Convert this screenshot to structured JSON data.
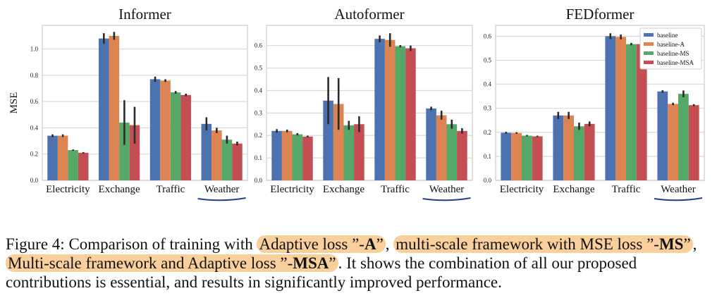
{
  "colors": {
    "baseline": "#4c72b0",
    "baseline_A": "#dd8452",
    "baseline_MS": "#55a868",
    "baseline_MSA": "#c44e52",
    "grid": "#d9d9d9",
    "underline": "#1f3f8f",
    "highlight": "#f9cf9c"
  },
  "chart_data": [
    {
      "type": "bar",
      "title": "Informer",
      "ylabel": "MSE",
      "ylim": [
        0,
        1.18
      ],
      "yticks": [
        0.0,
        0.2,
        0.4,
        0.6,
        0.8,
        1.0
      ],
      "ytick_labels": [
        "0.0",
        "0.2",
        "0.4",
        "0.6",
        "0.8",
        "1.0"
      ],
      "grid": true,
      "categories": [
        "Electricity",
        "Exchange",
        "Traffic",
        "Weather"
      ],
      "underlined_category": "Weather",
      "series": [
        {
          "name": "baseline",
          "values": [
            0.34,
            1.08,
            0.77,
            0.43
          ],
          "err": [
            0.01,
            0.04,
            0.02,
            0.05
          ]
        },
        {
          "name": "baseline-A",
          "values": [
            0.34,
            1.1,
            0.76,
            0.38
          ],
          "err": [
            0.01,
            0.03,
            0.01,
            0.02
          ]
        },
        {
          "name": "baseline-MS",
          "values": [
            0.23,
            0.44,
            0.67,
            0.31
          ],
          "err": [
            0.005,
            0.17,
            0.01,
            0.03
          ]
        },
        {
          "name": "baseline-MSA",
          "values": [
            0.21,
            0.42,
            0.65,
            0.28
          ],
          "err": [
            0.005,
            0.14,
            0.01,
            0.015
          ]
        }
      ]
    },
    {
      "type": "bar",
      "title": "Autoformer",
      "ylabel": "",
      "ylim": [
        0,
        0.69
      ],
      "yticks": [
        0.0,
        0.1,
        0.2,
        0.3,
        0.4,
        0.5,
        0.6
      ],
      "ytick_labels": [
        "0.0",
        "0.1",
        "0.2",
        "0.3",
        "0.4",
        "0.5",
        "0.6"
      ],
      "grid": true,
      "categories": [
        "Electricity",
        "Exchange",
        "Traffic",
        "Weather"
      ],
      "underlined_category": "Weather",
      "series": [
        {
          "name": "baseline",
          "values": [
            0.22,
            0.355,
            0.63,
            0.32
          ],
          "err": [
            0.008,
            0.105,
            0.015,
            0.008
          ]
        },
        {
          "name": "baseline-A",
          "values": [
            0.22,
            0.34,
            0.625,
            0.29
          ],
          "err": [
            0.006,
            0.115,
            0.03,
            0.02
          ]
        },
        {
          "name": "baseline-MS",
          "values": [
            0.205,
            0.245,
            0.597,
            0.25
          ],
          "err": [
            0.005,
            0.02,
            0.005,
            0.02
          ]
        },
        {
          "name": "baseline-MSA",
          "values": [
            0.195,
            0.25,
            0.588,
            0.22
          ],
          "err": [
            0.004,
            0.035,
            0.012,
            0.012
          ]
        }
      ]
    },
    {
      "type": "bar",
      "title": "FEDformer",
      "ylabel": "",
      "ylim": [
        0,
        0.645
      ],
      "yticks": [
        0.0,
        0.1,
        0.2,
        0.3,
        0.4,
        0.5,
        0.6
      ],
      "ytick_labels": [
        "0.0",
        "0.1",
        "0.2",
        "0.3",
        "0.4",
        "0.5",
        "0.6"
      ],
      "grid": true,
      "legend_position": "top-right",
      "categories": [
        "Electricity",
        "Exchange",
        "Traffic",
        "Weather"
      ],
      "underlined_category": "Weather",
      "series": [
        {
          "name": "baseline",
          "values": [
            0.198,
            0.27,
            0.6,
            0.37
          ],
          "err": [
            0.004,
            0.015,
            0.012,
            0.005
          ]
        },
        {
          "name": "baseline-A",
          "values": [
            0.197,
            0.27,
            0.597,
            0.318
          ],
          "err": [
            0.003,
            0.015,
            0.01,
            0.005
          ]
        },
        {
          "name": "baseline-MS",
          "values": [
            0.186,
            0.225,
            0.567,
            0.36
          ],
          "err": [
            0.003,
            0.015,
            0.005,
            0.014
          ]
        },
        {
          "name": "baseline-MSA",
          "values": [
            0.183,
            0.235,
            0.567,
            0.313
          ],
          "err": [
            0.003,
            0.01,
            0.005,
            0.004
          ]
        }
      ]
    }
  ],
  "caption": {
    "prefix": "Figure 4: Comparison of training with ",
    "hl1_text": "Adaptive loss ”-",
    "hl1_bold": "A",
    "hl1_end": "”",
    "sep1": ", ",
    "hl2_text": "multi-scale framework with MSE loss ”-",
    "hl2_bold": "MS",
    "hl2_end": "”",
    "sep2": ", ",
    "hl3_text": "Multi-scale framework and Adaptive loss ”-",
    "hl3_bold": "MSA",
    "hl3_end": "”",
    "suffix": ".  It shows the combination of all our proposed contributions is essential, and results in significantly improved performance."
  }
}
